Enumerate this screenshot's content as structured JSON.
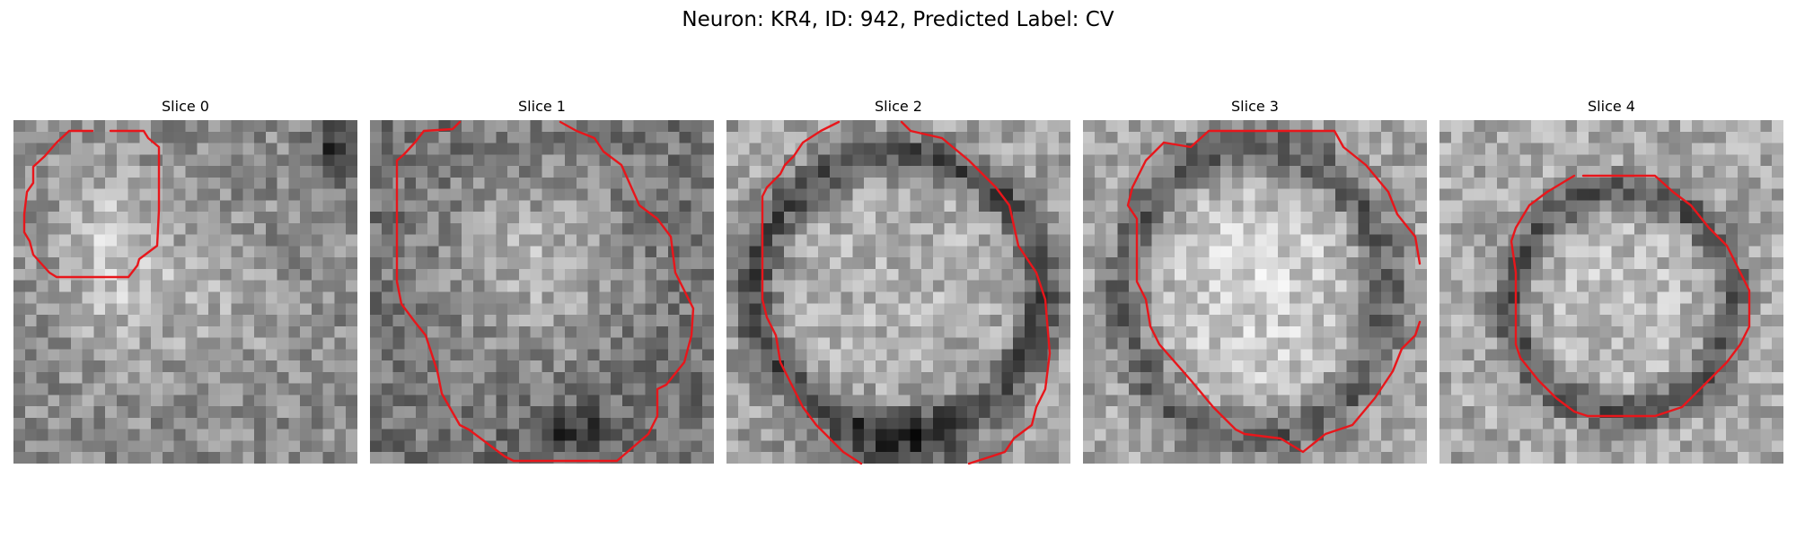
{
  "title": "Neuron: KR4, ID: 942, Predicted Label: CV",
  "contour_color": "#e8161b",
  "grid_size": 30,
  "panels": [
    {
      "label": "Slice 0"
    },
    {
      "label": "Slice 1"
    },
    {
      "label": "Slice 2"
    },
    {
      "label": "Slice 3"
    },
    {
      "label": "Slice 4"
    }
  ]
}
